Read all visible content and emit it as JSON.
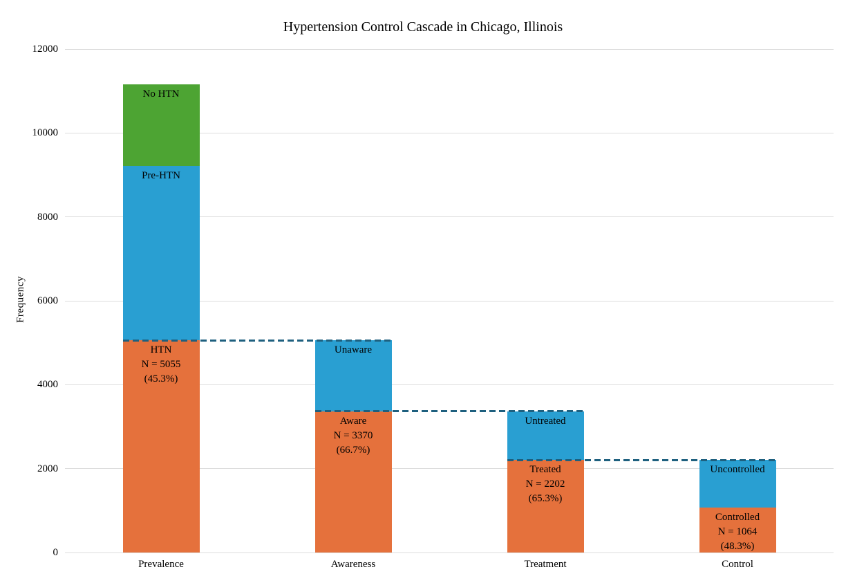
{
  "chart_data": {
    "type": "bar",
    "stacked": true,
    "title": "Hypertension Control Cascade in Chicago, Illinois",
    "ylabel": "Frequency",
    "xlabel": "",
    "ylim": [
      0,
      12000
    ],
    "yticks": [
      0,
      2000,
      4000,
      6000,
      8000,
      10000,
      12000
    ],
    "grid": true,
    "legend": false,
    "categories": [
      "Prevalence",
      "Awareness",
      "Treatment",
      "Control"
    ],
    "bars": [
      {
        "category": "Prevalence",
        "total": 11160,
        "segments": [
          {
            "name": "HTN",
            "value": 5055,
            "color_key": "orange",
            "lines": [
              "HTN",
              "N = 5055",
              "(45.3%)"
            ]
          },
          {
            "name": "Pre-HTN",
            "value": 4160,
            "color_key": "blue",
            "lines": [
              "Pre-HTN"
            ]
          },
          {
            "name": "No HTN",
            "value": 1945,
            "color_key": "green",
            "lines": [
              "No HTN"
            ]
          }
        ]
      },
      {
        "category": "Awareness",
        "total": 5055,
        "segments": [
          {
            "name": "Aware",
            "value": 3370,
            "color_key": "orange",
            "lines": [
              "Aware",
              "N = 3370",
              "(66.7%)"
            ]
          },
          {
            "name": "Unaware",
            "value": 1685,
            "color_key": "blue",
            "lines": [
              "Unaware"
            ]
          }
        ]
      },
      {
        "category": "Treatment",
        "total": 3370,
        "segments": [
          {
            "name": "Treated",
            "value": 2202,
            "color_key": "orange",
            "lines": [
              "Treated",
              "N = 2202",
              "(65.3%)"
            ]
          },
          {
            "name": "Untreated",
            "value": 1168,
            "color_key": "blue",
            "lines": [
              "Untreated"
            ]
          }
        ]
      },
      {
        "category": "Control",
        "total": 2202,
        "segments": [
          {
            "name": "Controlled",
            "value": 1064,
            "color_key": "orange",
            "lines": [
              "Controlled",
              "N = 1064",
              "(48.3%)"
            ]
          },
          {
            "name": "Uncontrolled",
            "value": 1138,
            "color_key": "blue",
            "lines": [
              "Uncontrolled"
            ]
          }
        ]
      }
    ],
    "connectors": [
      {
        "from_bar": 0,
        "to_bar": 1,
        "value": 5055
      },
      {
        "from_bar": 1,
        "to_bar": 2,
        "value": 3370
      },
      {
        "from_bar": 2,
        "to_bar": 3,
        "value": 2202
      }
    ],
    "colors": {
      "orange": "#E5713C",
      "blue": "#299FD2",
      "green": "#4DA433",
      "connector": "#1E607F",
      "grid": "#DCDCDC",
      "text": "#000000",
      "background": "#FFFFFF"
    }
  }
}
